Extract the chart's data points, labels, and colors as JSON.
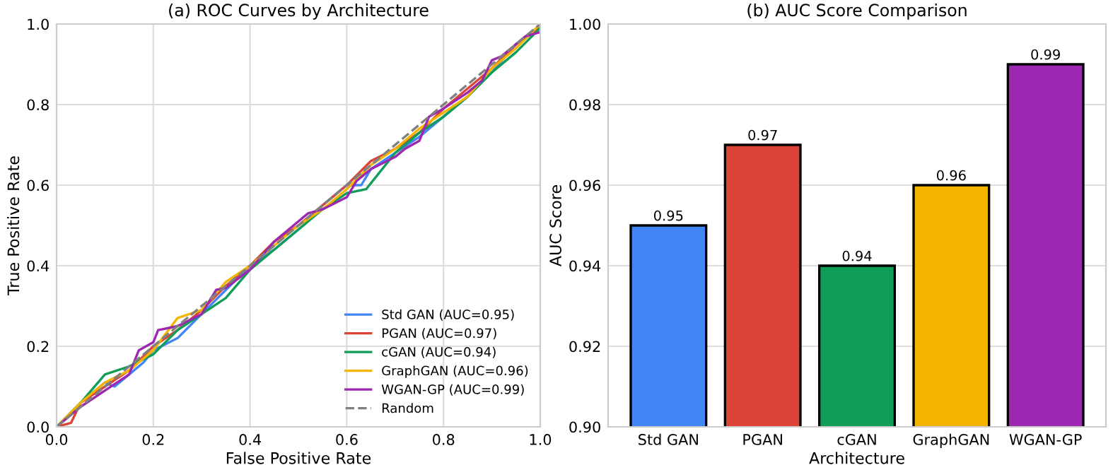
{
  "chart_data": [
    {
      "type": "line",
      "title": "(a) ROC Curves by Architecture",
      "xlabel": "False Positive Rate",
      "ylabel": "True Positive Rate",
      "xlim": [
        0,
        1
      ],
      "ylim": [
        0,
        1
      ],
      "xticks": [
        {
          "value": 0,
          "label": "0.0"
        },
        {
          "value": 0.2,
          "label": "0.2"
        },
        {
          "value": 0.4,
          "label": "0.4"
        },
        {
          "value": 0.6,
          "label": "0.6"
        },
        {
          "value": 0.8,
          "label": "0.8"
        },
        {
          "value": 1,
          "label": "1.0"
        }
      ],
      "yticks": [
        {
          "value": 0,
          "label": "0.0"
        },
        {
          "value": 0.2,
          "label": "0.2"
        },
        {
          "value": 0.4,
          "label": "0.4"
        },
        {
          "value": 0.6,
          "label": "0.6"
        },
        {
          "value": 0.8,
          "label": "0.8"
        },
        {
          "value": 1,
          "label": "1.0"
        }
      ],
      "grid": true,
      "legend": "bottom right",
      "series": [
        {
          "name": "Std GAN (AUC=0.95)",
          "color": "#4285f4",
          "x": [
            0,
            0.05,
            0.1,
            0.12,
            0.15,
            0.18,
            0.2,
            0.25,
            0.3,
            0.35,
            0.4,
            0.45,
            0.5,
            0.52,
            0.55,
            0.6,
            0.63,
            0.65,
            0.7,
            0.75,
            0.8,
            0.85,
            0.9,
            0.95,
            1
          ],
          "values": [
            0,
            0.06,
            0.11,
            0.1,
            0.13,
            0.16,
            0.19,
            0.22,
            0.28,
            0.34,
            0.4,
            0.44,
            0.49,
            0.51,
            0.55,
            0.6,
            0.6,
            0.64,
            0.68,
            0.72,
            0.77,
            0.82,
            0.88,
            0.95,
            0.99
          ]
        },
        {
          "name": "PGAN (AUC=0.97)",
          "color": "#db4437",
          "x": [
            0,
            0.03,
            0.05,
            0.1,
            0.15,
            0.2,
            0.25,
            0.3,
            0.35,
            0.4,
            0.45,
            0.5,
            0.55,
            0.6,
            0.65,
            0.7,
            0.75,
            0.8,
            0.85,
            0.9,
            0.95,
            1
          ],
          "values": [
            0,
            0.01,
            0.06,
            0.1,
            0.14,
            0.2,
            0.24,
            0.29,
            0.35,
            0.4,
            0.46,
            0.5,
            0.55,
            0.6,
            0.66,
            0.69,
            0.73,
            0.79,
            0.84,
            0.89,
            0.95,
            0.99
          ]
        },
        {
          "name": "cGAN (AUC=0.94)",
          "color": "#0f9d58",
          "x": [
            0,
            0.05,
            0.1,
            0.15,
            0.2,
            0.25,
            0.3,
            0.35,
            0.4,
            0.45,
            0.5,
            0.55,
            0.6,
            0.64,
            0.7,
            0.75,
            0.8,
            0.85,
            0.9,
            0.95,
            1
          ],
          "values": [
            0,
            0.06,
            0.13,
            0.15,
            0.18,
            0.24,
            0.28,
            0.32,
            0.39,
            0.44,
            0.49,
            0.54,
            0.58,
            0.59,
            0.68,
            0.73,
            0.77,
            0.82,
            0.88,
            0.93,
            0.99
          ]
        },
        {
          "name": "GraphGAN (AUC=0.96)",
          "color": "#f4b400",
          "x": [
            0,
            0.05,
            0.1,
            0.15,
            0.2,
            0.25,
            0.3,
            0.35,
            0.4,
            0.45,
            0.5,
            0.55,
            0.6,
            0.65,
            0.7,
            0.75,
            0.8,
            0.85,
            0.9,
            0.95,
            1
          ],
          "values": [
            0,
            0.06,
            0.11,
            0.14,
            0.19,
            0.27,
            0.29,
            0.36,
            0.4,
            0.45,
            0.5,
            0.54,
            0.59,
            0.65,
            0.69,
            0.74,
            0.78,
            0.82,
            0.89,
            0.94,
            1.0
          ]
        },
        {
          "name": "WGAN-GP (AUC=0.99)",
          "color": "#9c27b0",
          "x": [
            0,
            0.05,
            0.1,
            0.15,
            0.17,
            0.2,
            0.21,
            0.25,
            0.3,
            0.33,
            0.35,
            0.4,
            0.45,
            0.5,
            0.52,
            0.55,
            0.6,
            0.62,
            0.65,
            0.7,
            0.72,
            0.75,
            0.77,
            0.8,
            0.85,
            0.88,
            0.9,
            0.92,
            0.95,
            0.97,
            1
          ],
          "values": [
            0,
            0.05,
            0.09,
            0.13,
            0.19,
            0.21,
            0.24,
            0.25,
            0.28,
            0.34,
            0.345,
            0.39,
            0.46,
            0.51,
            0.53,
            0.54,
            0.57,
            0.61,
            0.64,
            0.67,
            0.69,
            0.71,
            0.77,
            0.79,
            0.83,
            0.86,
            0.91,
            0.92,
            0.95,
            0.97,
            0.98
          ]
        },
        {
          "name": "Random",
          "color": "#808080",
          "line_style": "dashed",
          "x": [
            0,
            1
          ],
          "values": [
            0,
            1
          ]
        }
      ]
    },
    {
      "type": "bar",
      "title": "(b) AUC Score Comparison",
      "xlabel": "Architecture",
      "ylabel": "AUC Score",
      "categories": [
        "Std GAN",
        "PGAN",
        "cGAN",
        "GraphGAN",
        "WGAN-GP"
      ],
      "values": [
        0.95,
        0.97,
        0.94,
        0.96,
        0.99
      ],
      "colors": [
        "#4285f4",
        "#db4437",
        "#0f9d58",
        "#f4b400",
        "#9c27b0"
      ],
      "ylim": [
        0.9,
        1.0
      ],
      "yticks": [
        {
          "value": 0.9,
          "label": "0.90"
        },
        {
          "value": 0.92,
          "label": "0.92"
        },
        {
          "value": 0.94,
          "label": "0.94"
        },
        {
          "value": 0.96,
          "label": "0.96"
        },
        {
          "value": 0.98,
          "label": "0.98"
        },
        {
          "value": 1.0,
          "label": "1.00"
        }
      ],
      "grid": "y",
      "data_labels": true
    }
  ]
}
